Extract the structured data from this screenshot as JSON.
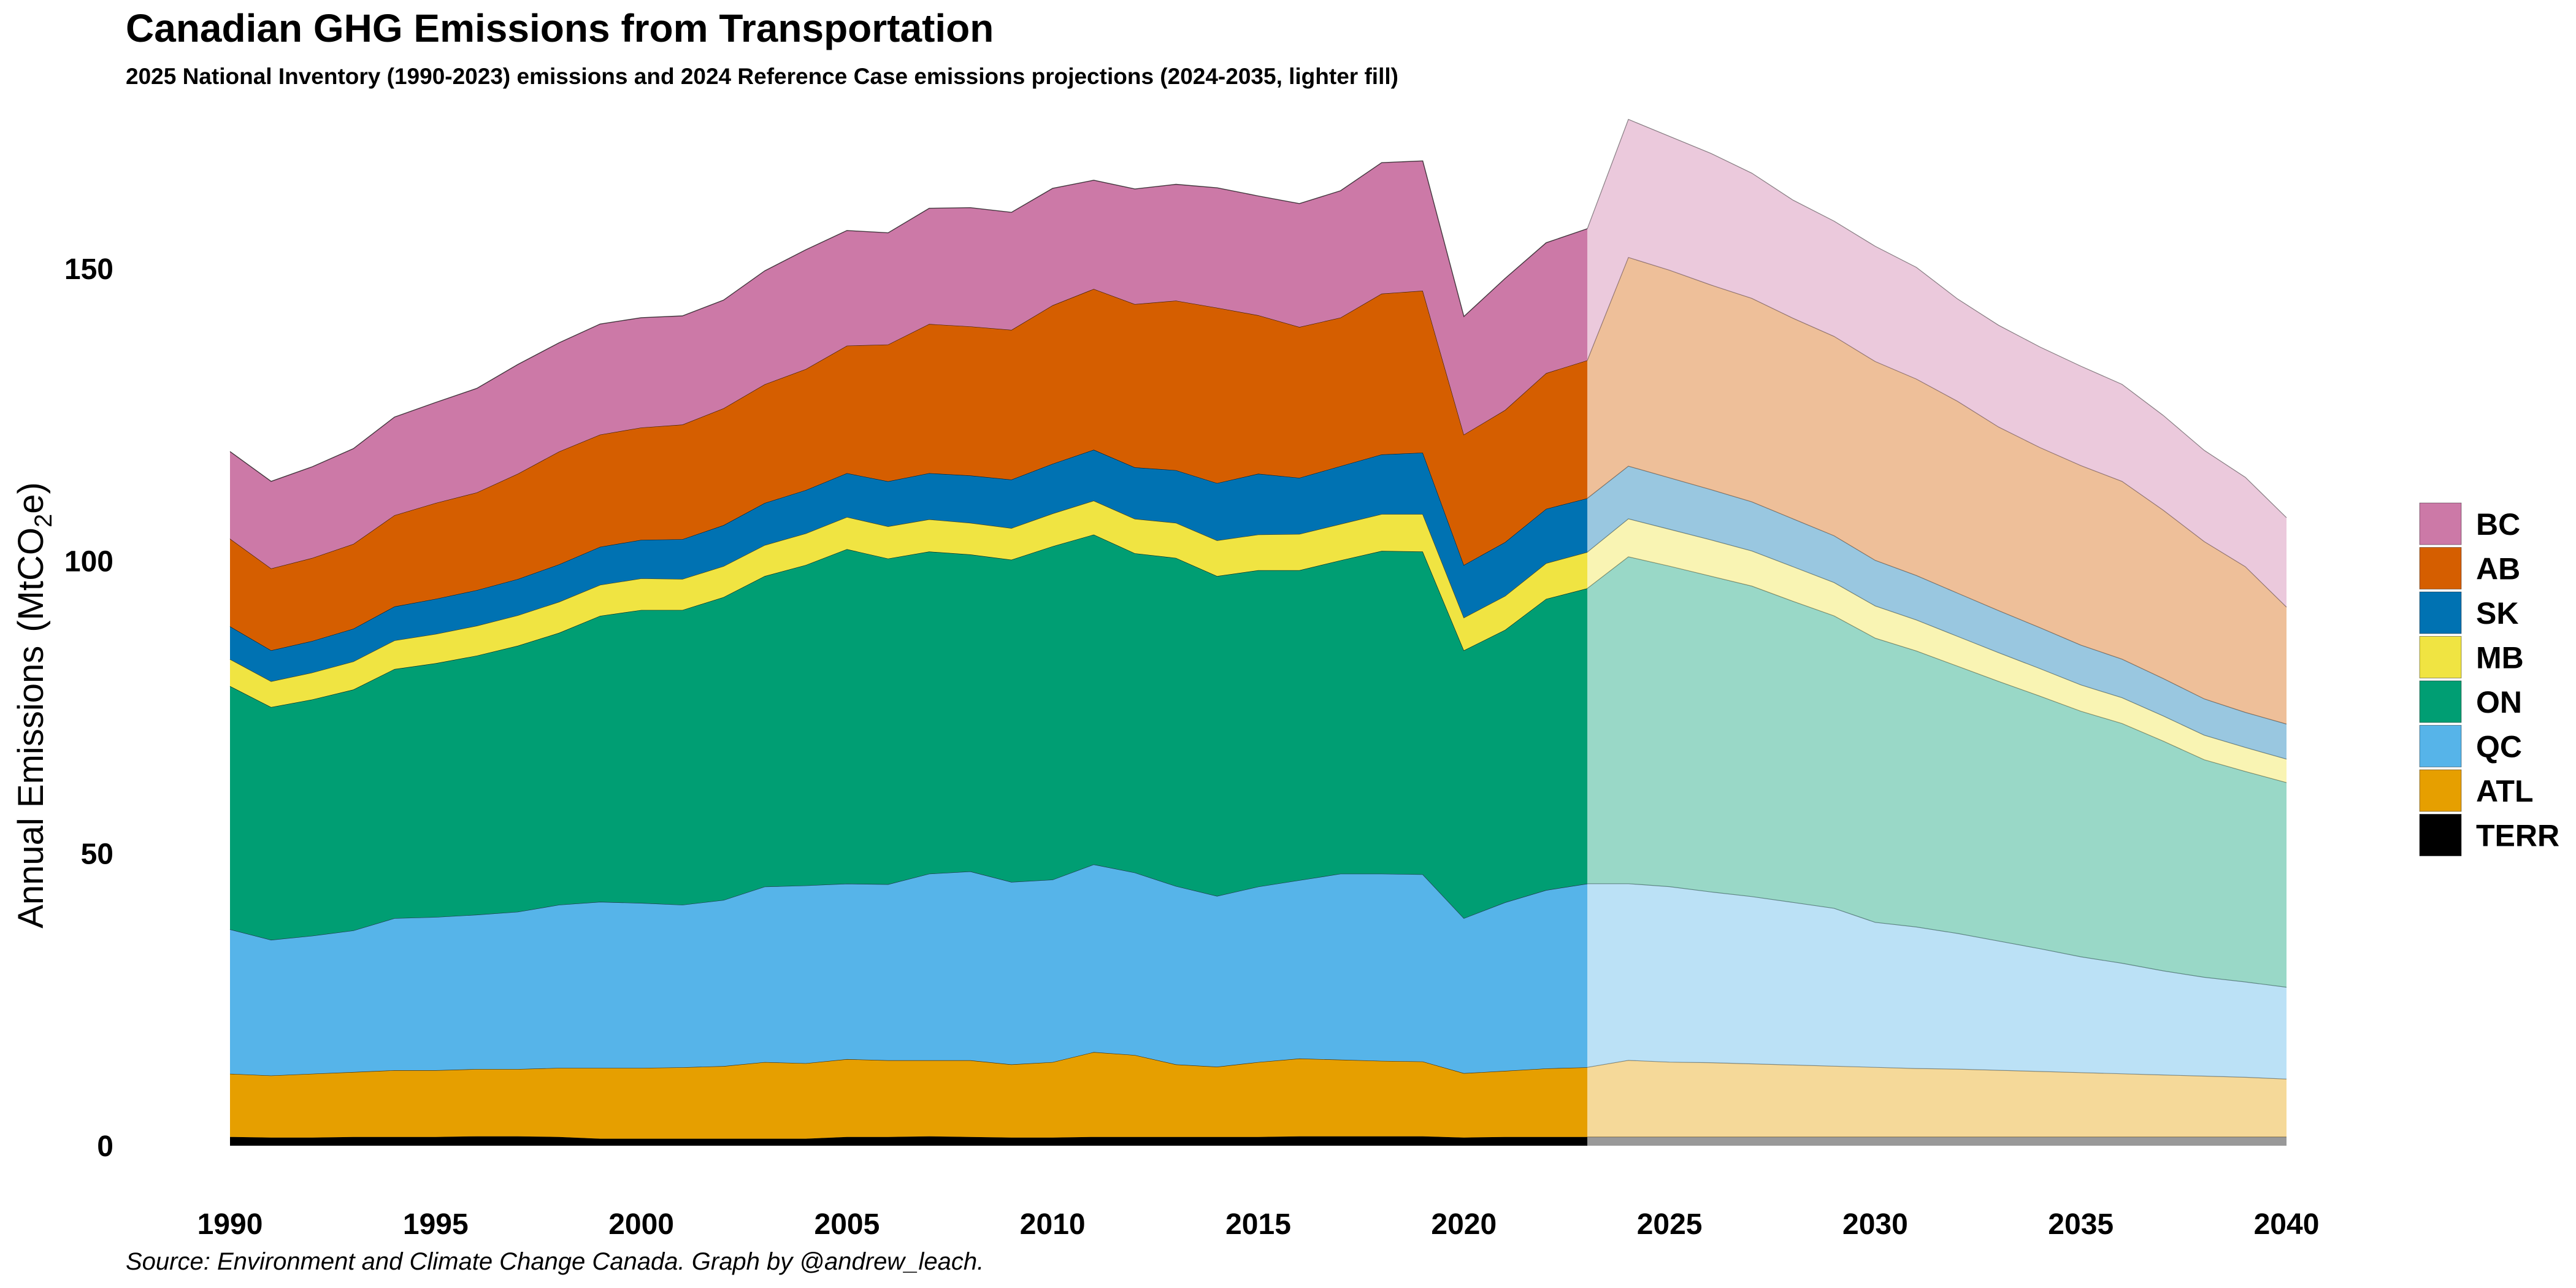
{
  "chart_data": {
    "type": "area",
    "stacked": true,
    "title": "Canadian GHG Emissions from Transportation",
    "subtitle": "2025 National Inventory (1990-2023) emissions and 2024 Reference Case emissions projections (2024-2035, lighter fill)",
    "caption": "Source: Environment and Climate Change Canada. Graph by @andrew_leach.",
    "ylabel": "Annual Emissions",
    "ylabel_unit": "(MtCO",
    "ylabel_sub": "2",
    "ylabel_tail": "e)",
    "xlabel": "",
    "ylim": [
      0,
      172
    ],
    "xlim": [
      1990,
      2040
    ],
    "x_ticks": [
      "1990",
      "1995",
      "2000",
      "2005",
      "2010",
      "2015",
      "2020",
      "2025",
      "2030",
      "2035",
      "2040"
    ],
    "y_ticks": [
      "0",
      "50",
      "100",
      "150"
    ],
    "grid": false,
    "legend_position": "right",
    "projection_start": 2023,
    "x": [
      1990,
      1991,
      1992,
      1993,
      1994,
      1995,
      1996,
      1997,
      1998,
      1999,
      2000,
      2001,
      2002,
      2003,
      2004,
      2005,
      2006,
      2007,
      2008,
      2009,
      2010,
      2011,
      2012,
      2013,
      2014,
      2015,
      2016,
      2017,
      2018,
      2019,
      2020,
      2021,
      2022,
      2023,
      2024,
      2025,
      2026,
      2027,
      2028,
      2029,
      2030,
      2031,
      2032,
      2033,
      2034,
      2035,
      2036,
      2037,
      2038,
      2039,
      2040
    ],
    "series": [
      {
        "name": "TERR",
        "color": "#000000",
        "values": [
          1.5,
          1.4,
          1.4,
          1.5,
          1.5,
          1.5,
          1.6,
          1.6,
          1.5,
          1.2,
          1.2,
          1.2,
          1.2,
          1.2,
          1.2,
          1.5,
          1.5,
          1.6,
          1.5,
          1.4,
          1.4,
          1.5,
          1.5,
          1.5,
          1.5,
          1.5,
          1.6,
          1.6,
          1.6,
          1.6,
          1.4,
          1.5,
          1.5,
          1.5,
          1.5,
          1.5,
          1.5,
          1.5,
          1.5,
          1.5,
          1.5,
          1.5,
          1.5,
          1.5,
          1.5,
          1.5,
          1.5,
          1.5,
          1.5,
          1.5,
          1.5
        ]
      },
      {
        "name": "ATL",
        "color": "#E69F00",
        "values": [
          10.8,
          10.6,
          10.9,
          11.1,
          11.4,
          11.4,
          11.5,
          11.5,
          11.8,
          12.1,
          12.1,
          12.2,
          12.4,
          13.1,
          12.9,
          13.3,
          13.1,
          13.0,
          13.1,
          12.5,
          12.9,
          14.5,
          14.0,
          12.4,
          12.0,
          12.8,
          13.3,
          13.1,
          12.9,
          12.8,
          11.0,
          11.3,
          11.7,
          11.9,
          13.1,
          12.8,
          12.7,
          12.5,
          12.3,
          12.1,
          11.9,
          11.7,
          11.6,
          11.4,
          11.2,
          11.0,
          10.8,
          10.6,
          10.4,
          10.2,
          9.9
        ]
      },
      {
        "name": "QC",
        "color": "#56B4E9",
        "values": [
          24.7,
          23.2,
          23.6,
          24.2,
          26.0,
          26.2,
          26.4,
          26.9,
          27.9,
          28.4,
          28.2,
          27.8,
          28.4,
          30.0,
          30.4,
          30.0,
          30.1,
          31.9,
          32.3,
          31.2,
          31.2,
          32.1,
          31.2,
          30.5,
          29.2,
          30.0,
          30.5,
          31.8,
          32.0,
          32.0,
          26.5,
          28.8,
          30.5,
          31.4,
          30.2,
          30.0,
          29.2,
          28.6,
          27.8,
          27.0,
          24.8,
          24.2,
          23.2,
          22.1,
          21.0,
          19.8,
          18.9,
          17.8,
          16.9,
          16.3,
          15.7
        ]
      },
      {
        "name": "ON",
        "color": "#009E73",
        "values": [
          41.6,
          39.8,
          40.4,
          41.2,
          42.6,
          43.4,
          44.3,
          45.5,
          46.5,
          48.9,
          50.1,
          50.4,
          51.8,
          53.1,
          54.8,
          57.2,
          55.7,
          55.1,
          54.2,
          55.1,
          57.0,
          56.4,
          54.6,
          56.1,
          54.7,
          54.1,
          53.0,
          53.6,
          55.2,
          55.2,
          45.8,
          46.6,
          49.8,
          50.5,
          55.9,
          54.8,
          54.0,
          53.1,
          51.5,
          50.0,
          48.6,
          47.2,
          45.7,
          44.4,
          43.2,
          42.0,
          41.0,
          39.3,
          37.2,
          36.0,
          35.0
        ]
      },
      {
        "name": "MB",
        "color": "#F0E442",
        "values": [
          4.6,
          4.4,
          4.6,
          4.8,
          4.9,
          5.0,
          5.1,
          5.2,
          5.3,
          5.3,
          5.4,
          5.3,
          5.3,
          5.3,
          5.4,
          5.5,
          5.5,
          5.5,
          5.4,
          5.4,
          5.6,
          5.8,
          5.9,
          6.0,
          6.1,
          6.1,
          6.2,
          6.2,
          6.3,
          6.4,
          5.6,
          5.8,
          6.1,
          6.2,
          6.5,
          6.3,
          6.2,
          6.0,
          5.9,
          5.7,
          5.5,
          5.3,
          5.1,
          4.9,
          4.7,
          4.5,
          4.4,
          4.3,
          4.2,
          4.1,
          4.0
        ]
      },
      {
        "name": "SK",
        "color": "#0072B2",
        "values": [
          5.6,
          5.3,
          5.4,
          5.6,
          5.8,
          6.0,
          6.1,
          6.2,
          6.4,
          6.5,
          6.6,
          6.8,
          7.0,
          7.2,
          7.4,
          7.5,
          7.7,
          7.9,
          8.1,
          8.3,
          8.5,
          8.7,
          8.8,
          9.0,
          9.8,
          10.4,
          9.6,
          9.9,
          10.2,
          10.5,
          9.0,
          9.2,
          9.3,
          9.2,
          9.0,
          8.8,
          8.6,
          8.4,
          8.2,
          8.0,
          7.8,
          7.6,
          7.4,
          7.2,
          7.0,
          6.8,
          6.6,
          6.4,
          6.2,
          6.0,
          6.0
        ]
      },
      {
        "name": "AB",
        "color": "#D55E00",
        "values": [
          15.0,
          14.0,
          14.2,
          14.5,
          15.6,
          16.4,
          16.7,
          18.0,
          19.3,
          19.2,
          19.2,
          19.6,
          20.0,
          20.3,
          20.7,
          21.8,
          23.4,
          25.5,
          25.5,
          25.6,
          27.1,
          27.5,
          27.9,
          29.0,
          30.0,
          27.1,
          25.8,
          25.4,
          27.5,
          27.7,
          22.3,
          22.6,
          23.2,
          23.6,
          35.7,
          35.5,
          35.0,
          34.8,
          34.3,
          34.1,
          34.0,
          33.6,
          32.8,
          31.4,
          30.8,
          30.7,
          30.4,
          28.8,
          26.9,
          24.9,
          20.0
        ]
      },
      {
        "name": "BC",
        "color": "#CC79A7",
        "values": [
          14.9,
          14.9,
          15.6,
          16.3,
          16.8,
          17.2,
          17.8,
          18.7,
          18.6,
          18.9,
          18.8,
          18.6,
          18.5,
          19.4,
          20.4,
          19.7,
          19.1,
          19.8,
          20.3,
          20.1,
          20.0,
          18.6,
          19.7,
          19.9,
          20.5,
          20.4,
          21.1,
          21.7,
          22.4,
          22.2,
          20.2,
          22.5,
          22.3,
          22.5,
          23.6,
          22.9,
          22.5,
          21.4,
          20.2,
          19.7,
          19.7,
          19.1,
          17.5,
          17.4,
          17.2,
          17.0,
          16.6,
          16.2,
          15.6,
          15.3,
          15.3
        ]
      }
    ]
  }
}
